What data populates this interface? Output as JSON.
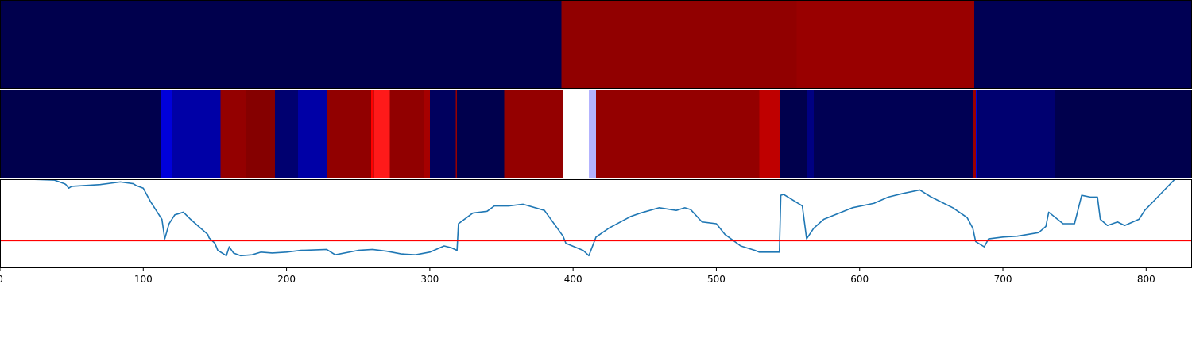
{
  "chart_data": [
    {
      "type": "heatmap",
      "title": "",
      "x_range": [
        0,
        832
      ],
      "colormap": "seismic",
      "value_range": [
        -1,
        1
      ],
      "segments": [
        {
          "start": 0,
          "end": 392,
          "value": -1.0
        },
        {
          "start": 392,
          "end": 556,
          "value": 0.93
        },
        {
          "start": 556,
          "end": 680,
          "value": 0.9
        },
        {
          "start": 680,
          "end": 832,
          "value": -0.98
        }
      ]
    },
    {
      "type": "heatmap",
      "title": "",
      "x_range": [
        0,
        832
      ],
      "colormap": "seismic",
      "value_range": [
        -1,
        1
      ],
      "segments": [
        {
          "start": 0,
          "end": 112,
          "value": -1.0
        },
        {
          "start": 112,
          "end": 120,
          "value": -0.6
        },
        {
          "start": 120,
          "end": 154,
          "value": -0.75
        },
        {
          "start": 154,
          "end": 172,
          "value": 0.92
        },
        {
          "start": 172,
          "end": 192,
          "value": 0.98
        },
        {
          "start": 192,
          "end": 208,
          "value": -0.9
        },
        {
          "start": 208,
          "end": 228,
          "value": -0.75
        },
        {
          "start": 228,
          "end": 259,
          "value": 0.93
        },
        {
          "start": 259,
          "end": 260,
          "value": 0.5
        },
        {
          "start": 260,
          "end": 261,
          "value": 0.9
        },
        {
          "start": 261,
          "end": 272,
          "value": 0.45
        },
        {
          "start": 272,
          "end": 296,
          "value": 0.93
        },
        {
          "start": 296,
          "end": 300,
          "value": 0.85
        },
        {
          "start": 300,
          "end": 318,
          "value": -0.95
        },
        {
          "start": 318,
          "end": 319,
          "value": 0.9
        },
        {
          "start": 319,
          "end": 352,
          "value": -1.0
        },
        {
          "start": 352,
          "end": 393,
          "value": 0.92
        },
        {
          "start": 393,
          "end": 411,
          "value": 0.0
        },
        {
          "start": 411,
          "end": 416,
          "value": -0.15
        },
        {
          "start": 416,
          "end": 530,
          "value": 0.92
        },
        {
          "start": 530,
          "end": 544,
          "value": 0.75
        },
        {
          "start": 544,
          "end": 563,
          "value": -1.0
        },
        {
          "start": 563,
          "end": 568,
          "value": -0.85
        },
        {
          "start": 568,
          "end": 679,
          "value": -0.98
        },
        {
          "start": 679,
          "end": 681,
          "value": 0.9
        },
        {
          "start": 681,
          "end": 682,
          "value": -0.6
        },
        {
          "start": 682,
          "end": 736,
          "value": -0.9
        },
        {
          "start": 736,
          "end": 832,
          "value": -1.0
        }
      ]
    },
    {
      "type": "line",
      "title": "",
      "xlabel": "",
      "ylabel": "",
      "xlim": [
        0,
        832
      ],
      "ylim": [
        0,
        1
      ],
      "grid": false,
      "xticks": [
        0,
        100,
        200,
        300,
        400,
        500,
        600,
        700,
        800
      ],
      "threshold": {
        "value": 0.31,
        "color": "#ff0000"
      },
      "series": [
        {
          "color": "#1f77b4",
          "x": [
            0,
            20,
            38,
            45,
            46,
            48,
            50,
            60,
            70,
            84,
            93,
            95,
            100,
            105,
            113,
            115,
            118,
            122,
            128,
            133,
            140,
            145,
            146,
            150,
            152,
            158,
            160,
            163,
            168,
            176,
            182,
            190,
            200,
            210,
            228,
            234,
            250,
            260,
            270,
            280,
            290,
            300,
            310,
            315,
            319,
            320,
            330,
            340,
            345,
            355,
            365,
            380,
            393,
            395,
            407,
            411,
            416,
            425,
            440,
            447,
            460,
            472,
            478,
            482,
            490,
            500,
            506,
            517,
            527,
            530,
            544,
            545,
            547,
            560,
            563,
            568,
            575,
            595,
            610,
            620,
            630,
            642,
            650,
            665,
            675,
            679,
            681,
            687,
            690,
            700,
            710,
            725,
            730,
            732,
            742,
            750,
            755,
            761,
            766,
            768,
            773,
            780,
            785,
            795,
            799,
            805,
            820,
            832
          ],
          "y": [
            1.0,
            1.0,
            0.99,
            0.95,
            0.94,
            0.9,
            0.92,
            0.93,
            0.94,
            0.97,
            0.95,
            0.93,
            0.9,
            0.75,
            0.55,
            0.33,
            0.5,
            0.6,
            0.63,
            0.55,
            0.45,
            0.38,
            0.34,
            0.28,
            0.2,
            0.14,
            0.24,
            0.17,
            0.14,
            0.15,
            0.18,
            0.17,
            0.18,
            0.2,
            0.21,
            0.15,
            0.2,
            0.21,
            0.19,
            0.16,
            0.15,
            0.18,
            0.25,
            0.23,
            0.2,
            0.5,
            0.62,
            0.64,
            0.7,
            0.7,
            0.72,
            0.65,
            0.36,
            0.28,
            0.2,
            0.14,
            0.35,
            0.45,
            0.58,
            0.62,
            0.68,
            0.65,
            0.68,
            0.66,
            0.52,
            0.5,
            0.38,
            0.25,
            0.2,
            0.18,
            0.18,
            0.82,
            0.83,
            0.7,
            0.33,
            0.45,
            0.55,
            0.68,
            0.73,
            0.8,
            0.84,
            0.88,
            0.8,
            0.68,
            0.57,
            0.45,
            0.3,
            0.24,
            0.33,
            0.35,
            0.36,
            0.4,
            0.47,
            0.63,
            0.5,
            0.5,
            0.82,
            0.8,
            0.8,
            0.55,
            0.48,
            0.52,
            0.48,
            0.55,
            0.65,
            0.75,
            1.0,
            1.0
          ]
        }
      ]
    }
  ]
}
